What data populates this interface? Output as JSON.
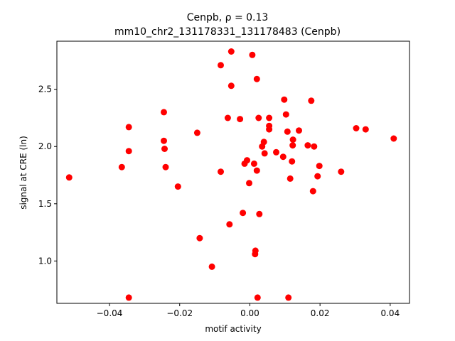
{
  "chart_data": {
    "type": "scatter",
    "title_line1": "Cenpb, ρ = 0.13",
    "title_line2": "mm10_chr2_131178331_131178483 (Cenpb)",
    "xlabel": "motif activity",
    "ylabel": "signal at CRE (ln)",
    "xlim": [
      -0.055,
      0.0455
    ],
    "ylim": [
      0.63,
      2.92
    ],
    "x_ticks": [
      -0.04,
      -0.02,
      0.0,
      0.02,
      0.04
    ],
    "x_tick_labels": [
      "−0.04",
      "−0.02",
      "0.00",
      "0.02",
      "0.04"
    ],
    "y_ticks": [
      1.0,
      1.5,
      2.0,
      2.5
    ],
    "y_tick_labels": [
      "1.0",
      "1.5",
      "2.0",
      "2.5"
    ],
    "grid": false,
    "marker_color": "#ff0000",
    "points": [
      {
        "x": -0.0515,
        "y": 1.73
      },
      {
        "x": -0.0365,
        "y": 1.82
      },
      {
        "x": -0.0345,
        "y": 2.17
      },
      {
        "x": -0.0345,
        "y": 1.96
      },
      {
        "x": -0.0345,
        "y": 0.68
      },
      {
        "x": -0.0245,
        "y": 2.3
      },
      {
        "x": -0.0245,
        "y": 2.05
      },
      {
        "x": -0.0243,
        "y": 1.98
      },
      {
        "x": -0.024,
        "y": 1.82
      },
      {
        "x": -0.0205,
        "y": 1.65
      },
      {
        "x": -0.015,
        "y": 2.12
      },
      {
        "x": -0.0143,
        "y": 1.2
      },
      {
        "x": -0.0108,
        "y": 0.95
      },
      {
        "x": -0.0083,
        "y": 2.71
      },
      {
        "x": -0.0083,
        "y": 1.78
      },
      {
        "x": -0.0063,
        "y": 2.25
      },
      {
        "x": -0.0058,
        "y": 1.32
      },
      {
        "x": -0.0053,
        "y": 2.83
      },
      {
        "x": -0.0053,
        "y": 2.53
      },
      {
        "x": -0.0028,
        "y": 2.24
      },
      {
        "x": -0.002,
        "y": 1.42
      },
      {
        "x": -0.0015,
        "y": 1.85
      },
      {
        "x": -0.0008,
        "y": 1.88
      },
      {
        "x": -0.0002,
        "y": 1.68
      },
      {
        "x": 0.0007,
        "y": 2.8
      },
      {
        "x": 0.0012,
        "y": 1.85
      },
      {
        "x": 0.0015,
        "y": 1.06
      },
      {
        "x": 0.0016,
        "y": 1.09
      },
      {
        "x": 0.002,
        "y": 2.59
      },
      {
        "x": 0.002,
        "y": 1.79
      },
      {
        "x": 0.0022,
        "y": 0.68
      },
      {
        "x": 0.0025,
        "y": 2.25
      },
      {
        "x": 0.0027,
        "y": 1.41
      },
      {
        "x": 0.0035,
        "y": 2.0
      },
      {
        "x": 0.004,
        "y": 2.04
      },
      {
        "x": 0.0042,
        "y": 1.94
      },
      {
        "x": 0.0055,
        "y": 2.25
      },
      {
        "x": 0.0055,
        "y": 2.18
      },
      {
        "x": 0.0055,
        "y": 2.15
      },
      {
        "x": 0.0075,
        "y": 1.95
      },
      {
        "x": 0.0095,
        "y": 1.91
      },
      {
        "x": 0.0098,
        "y": 2.41
      },
      {
        "x": 0.0103,
        "y": 2.28
      },
      {
        "x": 0.0107,
        "y": 2.13
      },
      {
        "x": 0.011,
        "y": 0.68
      },
      {
        "x": 0.0115,
        "y": 1.72
      },
      {
        "x": 0.012,
        "y": 1.87
      },
      {
        "x": 0.0122,
        "y": 2.01
      },
      {
        "x": 0.0123,
        "y": 2.06
      },
      {
        "x": 0.014,
        "y": 2.14
      },
      {
        "x": 0.0165,
        "y": 2.01
      },
      {
        "x": 0.0175,
        "y": 2.4
      },
      {
        "x": 0.018,
        "y": 1.61
      },
      {
        "x": 0.0183,
        "y": 2.0
      },
      {
        "x": 0.0193,
        "y": 1.74
      },
      {
        "x": 0.0198,
        "y": 1.83
      },
      {
        "x": 0.026,
        "y": 1.78
      },
      {
        "x": 0.0303,
        "y": 2.16
      },
      {
        "x": 0.033,
        "y": 2.15
      },
      {
        "x": 0.041,
        "y": 2.07
      }
    ]
  }
}
